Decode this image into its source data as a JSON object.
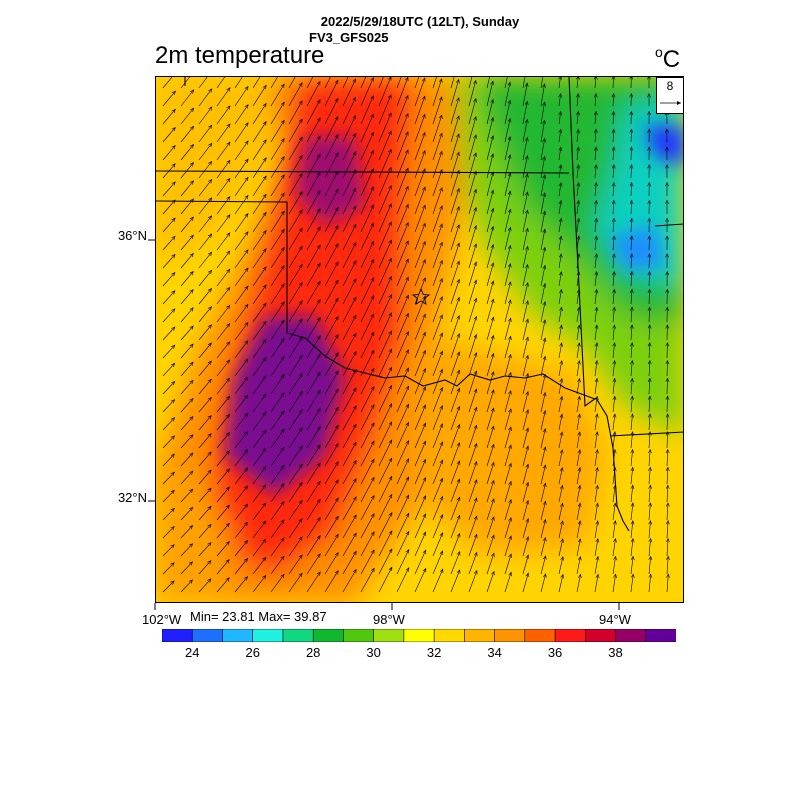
{
  "header": {
    "line1": "2022/5/29/18UTC (12LT), Sunday",
    "line2": "FV3_GFS025"
  },
  "map": {
    "title": "2m temperature",
    "units": "C",
    "units_prefix": "o",
    "min_max_text": "Min= 23.81 Max= 39.87",
    "lat_labels": [
      "36°N",
      "32°N"
    ],
    "lon_labels": [
      "102°W",
      "98°W",
      "94°W"
    ],
    "vector_ref_value": "8",
    "marker": "star",
    "colorbar": {
      "colors": [
        "#1f1fff",
        "#1f6fff",
        "#1fb7ff",
        "#20f0e0",
        "#10d880",
        "#10b830",
        "#50c810",
        "#a0e010",
        "#ffff00",
        "#ffd800",
        "#ffb400",
        "#ff9400",
        "#ff6000",
        "#ff1a1a",
        "#d2002a",
        "#960066",
        "#64009a"
      ],
      "labels": [
        "24",
        "26",
        "28",
        "30",
        "32",
        "34",
        "36",
        "38"
      ]
    }
  }
}
